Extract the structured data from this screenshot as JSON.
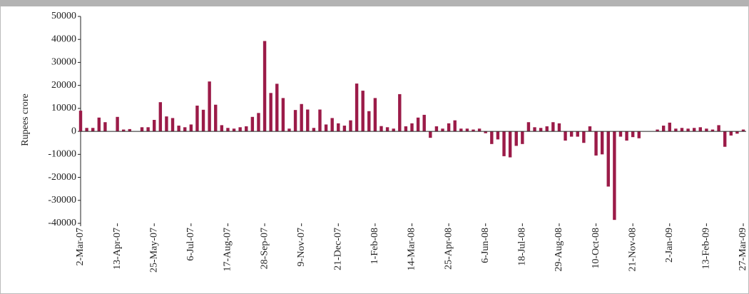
{
  "chart_data": {
    "type": "bar",
    "y_label": "Rupees crore",
    "categories": [
      "2-Mar-07",
      null,
      null,
      null,
      null,
      null,
      "13-Apr-07",
      null,
      null,
      null,
      null,
      null,
      "25-May-07",
      null,
      null,
      null,
      null,
      null,
      "6-Jul-07",
      null,
      null,
      null,
      null,
      null,
      "17-Aug-07",
      null,
      null,
      null,
      null,
      null,
      "28-Sep-07",
      null,
      null,
      null,
      null,
      null,
      "9-Nov-07",
      null,
      null,
      null,
      null,
      null,
      "21-Dec-07",
      null,
      null,
      null,
      null,
      null,
      "1-Feb-08",
      null,
      null,
      null,
      null,
      null,
      "14-Mar-08",
      null,
      null,
      null,
      null,
      null,
      "25-Apr-08",
      null,
      null,
      null,
      null,
      null,
      "6-Jun-08",
      null,
      null,
      null,
      null,
      null,
      "18-Jul-08",
      null,
      null,
      null,
      null,
      null,
      "29-Aug-08",
      null,
      null,
      null,
      null,
      null,
      "10-Oct-08",
      null,
      null,
      null,
      null,
      null,
      "21-Nov-08",
      null,
      null,
      null,
      null,
      null,
      "2-Jan-09",
      null,
      null,
      null,
      null,
      null,
      "13-Feb-09",
      null,
      null,
      null,
      null,
      null,
      "27-Mar-09"
    ],
    "values": [
      9000,
      1500,
      1500,
      6000,
      4000,
      0,
      6300,
      800,
      1000,
      0,
      1800,
      1800,
      5000,
      12700,
      6500,
      5800,
      2500,
      1800,
      3000,
      11200,
      9400,
      21700,
      11600,
      2700,
      1500,
      1200,
      1800,
      2200,
      6300,
      8000,
      39300,
      16700,
      20700,
      14500,
      1200,
      9300,
      11900,
      9500,
      1500,
      9500,
      3000,
      5800,
      3500,
      2500,
      4800,
      20800,
      17700,
      8800,
      14500,
      2300,
      1800,
      1200,
      16200,
      2200,
      3500,
      6000,
      7200,
      -2800,
      2200,
      1200,
      3500,
      4800,
      1200,
      1200,
      800,
      1200,
      -800,
      -5500,
      -3500,
      -10800,
      -11300,
      -6300,
      -5500,
      4000,
      1800,
      1500,
      2200,
      4000,
      3500,
      -4000,
      -2300,
      -2300,
      -5000,
      2200,
      -10500,
      -10000,
      -24000,
      -38500,
      -2300,
      -4000,
      -2500,
      -3000,
      0,
      0,
      800,
      2500,
      3800,
      1200,
      1500,
      1200,
      1500,
      1800,
      1200,
      800,
      2700,
      -6700,
      -1800,
      -1000,
      800
    ],
    "color": "#9b1b48",
    "ylim": [
      -40000,
      50000
    ],
    "yticks": [
      -40000,
      -30000,
      -20000,
      -10000,
      0,
      10000,
      20000,
      30000,
      40000,
      50000
    ]
  }
}
